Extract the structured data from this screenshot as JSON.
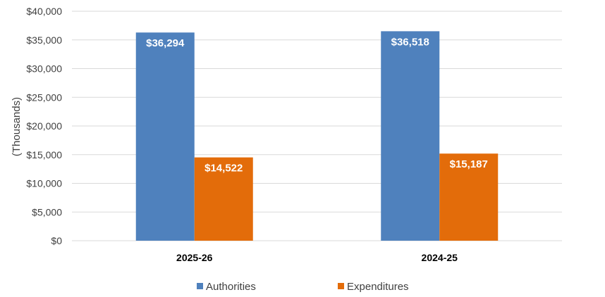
{
  "chart_data": {
    "type": "bar",
    "title": "",
    "xlabel": "",
    "ylabel": "(Thousands)",
    "ylim": [
      0,
      40000
    ],
    "yticks": [
      0,
      5000,
      10000,
      15000,
      20000,
      25000,
      30000,
      35000,
      40000
    ],
    "ytick_labels": [
      "$0",
      "$5,000",
      "$10,000",
      "$15,000",
      "$20,000",
      "$25,000",
      "$30,000",
      "$35,000",
      "$40,000"
    ],
    "categories": [
      "2025-26",
      "2024-25"
    ],
    "series": [
      {
        "name": "Authorities",
        "color": "#4F81BD",
        "values": [
          36294,
          36518
        ],
        "labels": [
          "$36,294",
          "$36,518"
        ]
      },
      {
        "name": "Expenditures",
        "color": "#E36C0A",
        "values": [
          14522,
          15187
        ],
        "labels": [
          "$14,522",
          "$15,187"
        ]
      }
    ],
    "grid": true,
    "legend": "bottom"
  }
}
